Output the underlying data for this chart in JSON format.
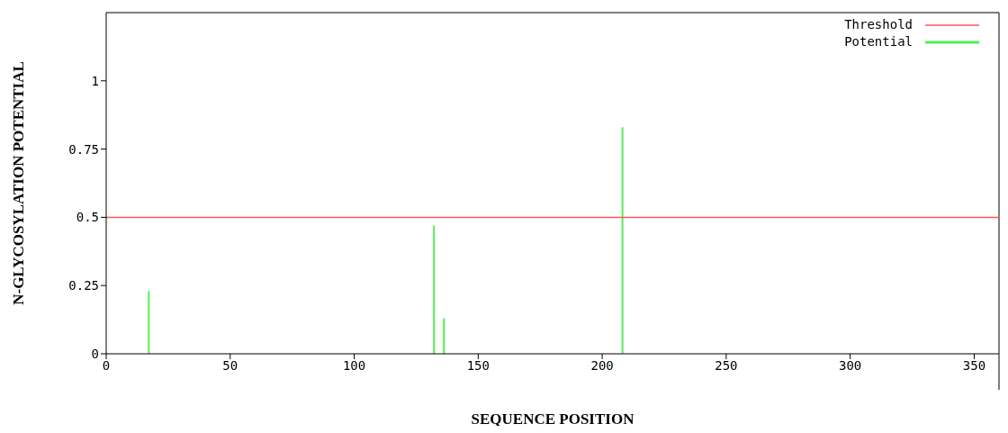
{
  "chart_data": {
    "type": "bar",
    "xlabel": "SEQUENCE POSITION",
    "ylabel": "N-GLYCOSYLATION POTENTIAL",
    "series": [
      {
        "name": "Threshold",
        "type": "line",
        "color": "#ff5555",
        "x": [
          0,
          360
        ],
        "values": [
          0.5,
          0.5
        ]
      },
      {
        "name": "Potential",
        "color": "#55ee55",
        "x": [
          17,
          132,
          136,
          208
        ],
        "values": [
          0.23,
          0.47,
          0.13,
          0.83
        ]
      }
    ],
    "xlim": [
      0,
      360
    ],
    "xticks": [
      0,
      50,
      100,
      150,
      200,
      250,
      300,
      350
    ],
    "ylim": [
      0,
      1.25
    ],
    "yticks": [
      0,
      0.25,
      0.5,
      0.75,
      1
    ],
    "grid": false,
    "legend": "top right"
  }
}
